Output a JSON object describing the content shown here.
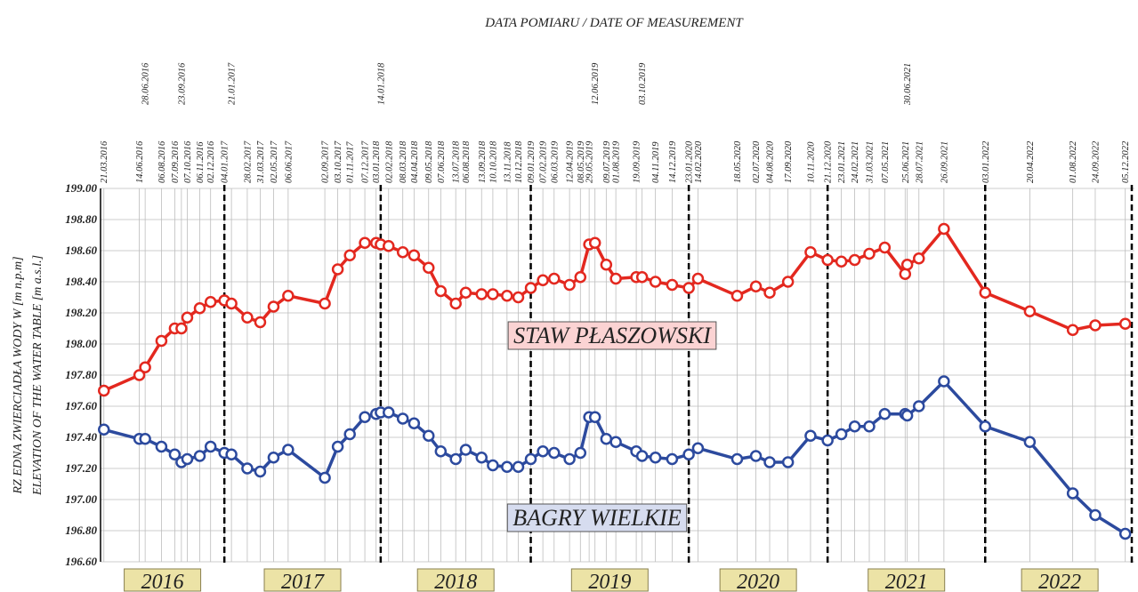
{
  "chart_data": {
    "type": "line",
    "title": "DATA POMIARU / DATE OF MEASUREMENT",
    "y_label": [
      "RZ EDNA ZWIERCIADŁA WODY W [m n.p.m]",
      "ELEVATION OF THE WATER TABLE [m a.s.l.]"
    ],
    "x": [
      "21.03.2016",
      "14.06.2016",
      "28.06.2016",
      "06.08.2016",
      "07.09.2016",
      "23.09.2016",
      "07.10.2016",
      "06.11.2016",
      "02.12.2016",
      "04.01.2017",
      "21.01.2017",
      "28.02.2017",
      "31.03.2017",
      "02.05.2017",
      "06.06.2017",
      "02.09.2017",
      "03.10.2017",
      "01.11.2017",
      "07.12.2017",
      "03.01.2018",
      "14.01.2018",
      "02.02.2018",
      "08.03.2018",
      "04.04.2018",
      "09.05.2018",
      "07.06.2018",
      "13.07.2018",
      "06.08.2018",
      "13.09.2018",
      "10.10.2018",
      "13.11.2018",
      "10.12.2018",
      "09.01.2019",
      "07.02.2019",
      "06.03.2019",
      "12.04.2019",
      "08.05.2019",
      "29.05.2019",
      "12.06.2019",
      "09.07.2019",
      "01.08.2019",
      "19.09.2019",
      "03.10.2019",
      "04.11.2019",
      "14.12.2019",
      "23.01.2020",
      "14.02.2020",
      "18.05.2020",
      "02.07.2020",
      "04.08.2020",
      "17.09.2020",
      "10.11.2020",
      "21.12.2020",
      "23.01.2021",
      "24.02.2021",
      "31.03.2021",
      "07.05.2021",
      "25.06.2021",
      "30.06.2021",
      "28.07.2021",
      "26.09.2021",
      "03.01.2022",
      "20.04.2022",
      "01.08.2022",
      "24.09.2022",
      "05.12.2022"
    ],
    "xlim": [
      "13.03.2016",
      "27.12.2022"
    ],
    "dashed_dates": [
      "04.01.2017",
      "14.01.2018",
      "09.01.2019",
      "23.01.2020",
      "21.12.2020",
      "03.01.2022"
    ],
    "years": [
      "2016",
      "2017",
      "2018",
      "2019",
      "2020",
      "2021",
      "2022"
    ],
    "ylim": [
      196.6,
      199
    ],
    "yticks": [
      {
        "value": 196.6,
        "label": "196.60"
      },
      {
        "value": 196.8,
        "label": "196.80"
      },
      {
        "value": 197,
        "label": "197.00"
      },
      {
        "value": 197.2,
        "label": "197.20"
      },
      {
        "value": 197.4,
        "label": "197.40"
      },
      {
        "value": 197.6,
        "label": "197.60"
      },
      {
        "value": 197.8,
        "label": "197.80"
      },
      {
        "value": 198,
        "label": "198.00"
      },
      {
        "value": 198.2,
        "label": "198.20"
      },
      {
        "value": 198.4,
        "label": "198.40"
      },
      {
        "value": 198.6,
        "label": "198.60"
      },
      {
        "value": 198.8,
        "label": "198.80"
      },
      {
        "value": 199,
        "label": "199.00"
      }
    ],
    "grid": true,
    "series": [
      {
        "name": "STAW PŁASZOWSKI",
        "color": "#e3281f",
        "label_bg": "#fbd3d3",
        "values": [
          197.7,
          197.8,
          197.85,
          198.02,
          198.1,
          198.1,
          198.17,
          198.23,
          198.27,
          198.28,
          198.26,
          198.17,
          198.14,
          198.24,
          198.31,
          198.26,
          198.48,
          198.57,
          198.65,
          198.65,
          198.64,
          198.63,
          198.59,
          198.57,
          198.49,
          198.34,
          198.26,
          198.33,
          198.32,
          198.32,
          198.31,
          198.3,
          198.36,
          198.41,
          198.42,
          198.38,
          198.43,
          198.64,
          198.65,
          198.51,
          198.42,
          198.43,
          198.43,
          198.4,
          198.38,
          198.36,
          198.42,
          198.31,
          198.37,
          198.33,
          198.4,
          198.59,
          198.54,
          198.53,
          198.54,
          198.58,
          198.62,
          198.45,
          198.51,
          198.55,
          198.74,
          198.33,
          198.21,
          198.09,
          198.12,
          198.13
        ]
      },
      {
        "name": "BAGRY WIELKIE",
        "color": "#2c4a9e",
        "label_bg": "#d6dcef",
        "values": [
          197.45,
          197.39,
          197.39,
          197.34,
          197.29,
          197.24,
          197.26,
          197.28,
          197.34,
          197.3,
          197.29,
          197.2,
          197.18,
          197.27,
          197.32,
          197.14,
          197.34,
          197.42,
          197.53,
          197.55,
          197.56,
          197.56,
          197.52,
          197.49,
          197.41,
          197.31,
          197.26,
          197.32,
          197.27,
          197.22,
          197.21,
          197.21,
          197.26,
          197.31,
          197.3,
          197.26,
          197.3,
          197.53,
          197.53,
          197.39,
          197.37,
          197.31,
          197.28,
          197.27,
          197.26,
          197.29,
          197.33,
          197.26,
          197.28,
          197.24,
          197.24,
          197.41,
          197.38,
          197.42,
          197.47,
          197.47,
          197.55,
          197.55,
          197.54,
          197.6,
          197.76,
          197.47,
          197.37,
          197.04,
          196.9,
          196.78
        ]
      }
    ]
  }
}
